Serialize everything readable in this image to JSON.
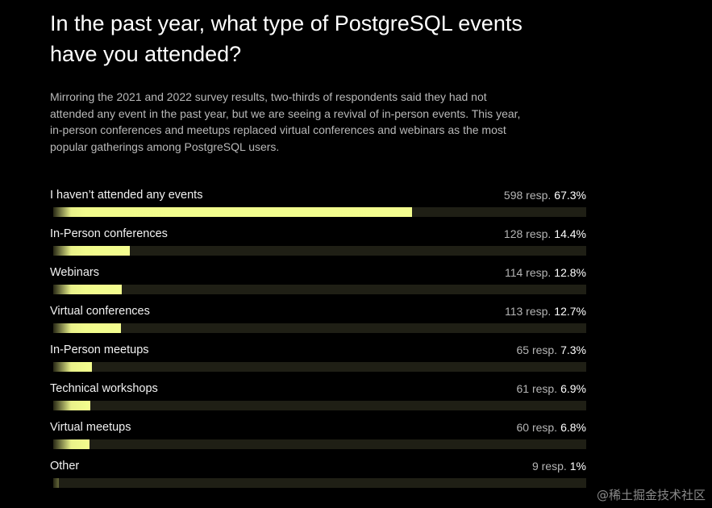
{
  "title": "In the past year, what type of PostgreSQL events have you attended?",
  "description": "Mirroring the 2021 and 2022 survey results, two-thirds of respondents said they had not attended any event in the past year, but we are seeing a revival of in-person events. This year, in-person conferences and meetups replaced virtual conferences and webinars as the most popular gatherings among PostgreSQL users.",
  "watermark": "@稀土掘金技术社区",
  "colors": {
    "background": "#000000",
    "bar_fill": "#f3fd8f",
    "bar_track": "#1f1f15"
  },
  "chart_data": {
    "type": "bar",
    "orientation": "horizontal",
    "title": "In the past year, what type of PostgreSQL events have you attended?",
    "categories": [
      "I haven’t attended any events",
      "In-Person conferences",
      "Webinars",
      "Virtual conferences",
      "In-Person meetups",
      "Technical workshops",
      "Virtual meetups",
      "Other"
    ],
    "responses": [
      598,
      128,
      114,
      113,
      65,
      61,
      60,
      9
    ],
    "values": [
      67.3,
      14.4,
      12.8,
      12.7,
      7.3,
      6.9,
      6.8,
      1
    ],
    "response_labels": [
      "598 resp.",
      "128 resp.",
      "114 resp.",
      "113 resp.",
      "65 resp.",
      "61 resp.",
      "60 resp.",
      "9 resp."
    ],
    "percent_labels": [
      "67.3%",
      "14.4%",
      "12.8%",
      "12.7%",
      "7.3%",
      "6.9%",
      "6.8%",
      "1%"
    ],
    "xlim": [
      0,
      100
    ],
    "grid": false,
    "legend": "none"
  }
}
